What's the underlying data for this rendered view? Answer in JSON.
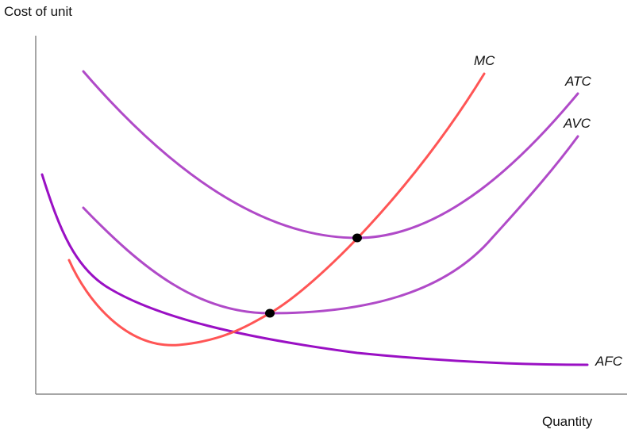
{
  "axes": {
    "y_label": "Cost of unit",
    "x_label": "Quantity"
  },
  "curves": {
    "mc": "MC",
    "atc": "ATC",
    "avc": "AVC",
    "afc": "AFC"
  }
}
